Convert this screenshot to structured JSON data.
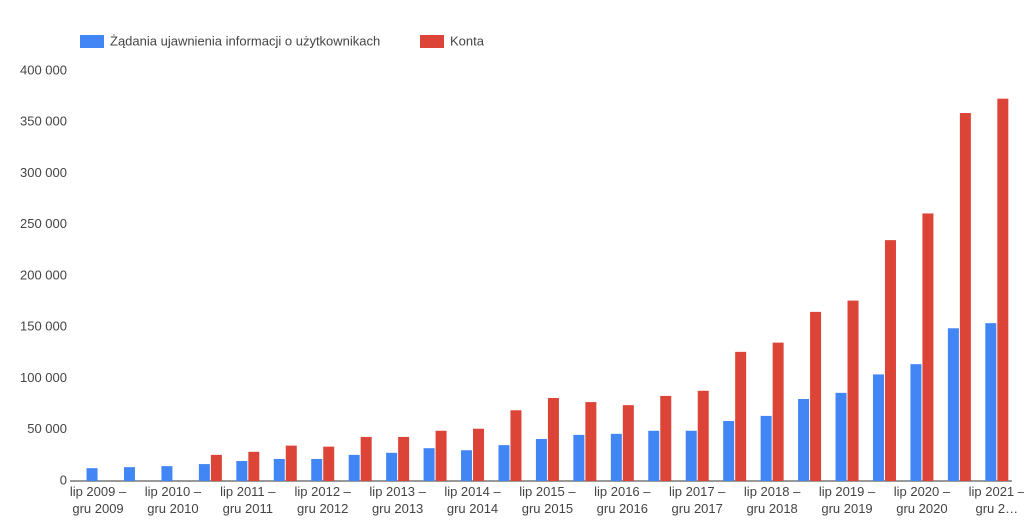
{
  "chart_data": {
    "type": "bar",
    "categories": [
      "lip 2009 – gru 2009",
      null,
      "lip 2010 – gru 2010",
      null,
      "lip 2011 – gru 2011",
      null,
      "lip 2012 – gru 2012",
      null,
      "lip 2013 – gru 2013",
      null,
      "lip 2014 – gru 2014",
      null,
      "lip 2015 – gru 2015",
      null,
      "lip 2016 – gru 2016",
      null,
      "lip 2017 – gru 2017",
      null,
      "lip 2018 – gru 2018",
      null,
      "lip 2019 – gru 2019",
      null,
      "lip 2020 – gru 2020",
      null,
      "lip 2021 – gru 2…"
    ],
    "series": [
      {
        "name": "Żądania ujawnienia informacji o użytkownikach",
        "color": "#4285f4",
        "values": [
          12500,
          13500,
          14500,
          16500,
          19500,
          21500,
          21500,
          25500,
          27500,
          32000,
          30000,
          35000,
          41000,
          45000,
          46000,
          49000,
          49000,
          58500,
          63500,
          80000,
          86000,
          104000,
          114000,
          149000,
          154000
        ]
      },
      {
        "name": "Konta",
        "color": "#db4437",
        "values": [
          null,
          null,
          null,
          25500,
          28500,
          34500,
          33500,
          43000,
          43000,
          49000,
          51000,
          69000,
          81000,
          77000,
          74000,
          83000,
          88000,
          126000,
          135000,
          165000,
          176000,
          235000,
          261000,
          359000,
          373000
        ]
      }
    ],
    "ylim": [
      0,
      400000
    ],
    "yticks": [
      0,
      {
        "value": 50000,
        "label": "50 000"
      },
      {
        "value": 100000,
        "label": "100 000"
      },
      {
        "value": 150000,
        "label": "150 000"
      },
      {
        "value": 200000,
        "label": "200 000"
      },
      {
        "value": 250000,
        "label": "250 000"
      },
      {
        "value": 300000,
        "label": "300 000"
      },
      {
        "value": 350000,
        "label": "350 000"
      },
      {
        "value": 400000,
        "label": "400 000"
      }
    ],
    "grid": false,
    "legend": "top"
  }
}
